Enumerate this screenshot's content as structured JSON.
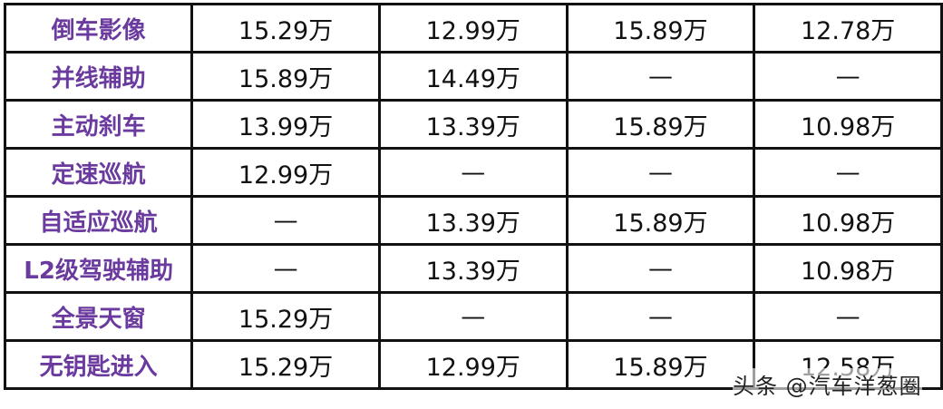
{
  "rows": [
    {
      "feature": "倒车影像",
      "values": [
        "15.29万",
        "12.99万",
        "15.89万",
        "12.78万"
      ]
    },
    {
      "feature": "并线辅助",
      "values": [
        "15.89万",
        "14.49万",
        "—",
        "—"
      ]
    },
    {
      "feature": "主动刹车",
      "values": [
        "13.99万",
        "13.39万",
        "15.89万",
        "10.98万"
      ]
    },
    {
      "feature": "定速巡航",
      "values": [
        "12.99万",
        "—",
        "—",
        "—"
      ]
    },
    {
      "feature": "自适应巡航",
      "values": [
        "—",
        "13.39万",
        "15.89万",
        "10.98万"
      ]
    },
    {
      "feature": "L2级驾驶辅助",
      "values": [
        "—",
        "13.39万",
        "—",
        "10.98万"
      ]
    },
    {
      "feature": "全景天窗",
      "values": [
        "15.29万",
        "—",
        "—",
        "—"
      ]
    },
    {
      "feature": "无钥匙进入",
      "values": [
        "15.29万",
        "12.99万",
        "15.89万",
        "12.58万"
      ]
    }
  ],
  "watermark": "头条 @汽车洋葱圈",
  "colors": {
    "feature_text": "#6b3a9e",
    "border": "#111111"
  }
}
